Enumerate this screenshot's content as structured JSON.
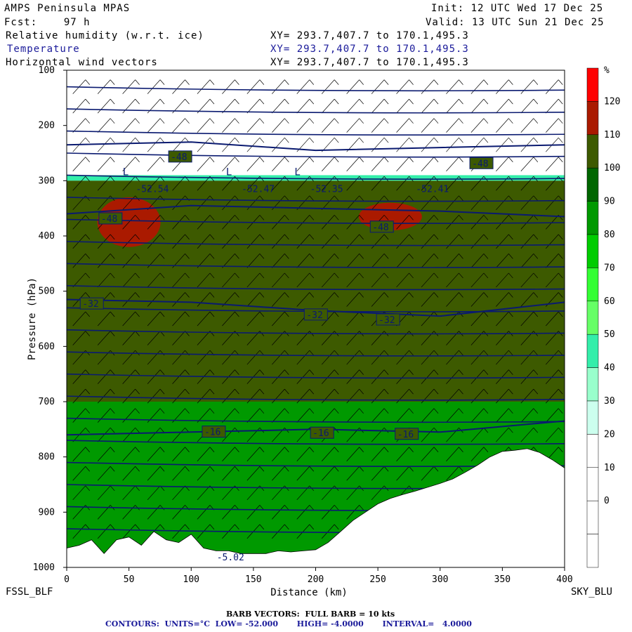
{
  "header": {
    "model": "AMPS Peninsula MPAS",
    "fcst_label": "Fcst:",
    "fcst_value": "97 h",
    "init": "Init: 12 UTC Wed 17 Dec 25",
    "valid": "Valid: 13 UTC Sun 21 Dec 25",
    "fields": [
      {
        "name": "Relative humidity (w.r.t. ice)",
        "xy": "XY= 293.7,407.7 to 170.1,495.3"
      },
      {
        "name": "Temperature",
        "xy": "XY= 293.7,407.7 to 170.1,495.3"
      },
      {
        "name": "Horizontal wind vectors",
        "xy": "XY= 293.7,407.7 to 170.1,495.3"
      }
    ]
  },
  "footer": {
    "left_station": "FSSL_BLF",
    "right_station": "SKY_BLU",
    "barb": "BARB VECTORS:  FULL BARB = 10 kts",
    "contours": "CONTOURS:  UNITS=°C  LOW= -52.000       HIGH= -4.0000       INTERVAL=   4.0000"
  },
  "colors": {
    "temp_contour": "#0a1a70",
    "rh_scale": [
      "#ffffff",
      "#ffffff",
      "#ffffff",
      "#ffffff",
      "#ccffee",
      "#99ffcc",
      "#33eeaa",
      "#66ff66",
      "#33ff33",
      "#00cc00",
      "#009900",
      "#006600",
      "#3d5a00",
      "#aa1a00",
      "#ff0000"
    ]
  },
  "chart_data": {
    "type": "heatmap",
    "xlabel": "Distance (km)",
    "ylabel": "Pressure (hPa)",
    "xlim": [
      0,
      400
    ],
    "ylim": [
      1000,
      100
    ],
    "x_ticks": [
      0,
      50,
      100,
      150,
      200,
      250,
      300,
      350,
      400
    ],
    "y_ticks": [
      100,
      200,
      300,
      400,
      500,
      600,
      700,
      800,
      900,
      1000
    ],
    "colorbar": {
      "unit": "%",
      "labels": [
        120,
        110,
        100,
        90,
        80,
        70,
        60,
        50,
        40,
        30,
        20,
        10,
        0
      ]
    },
    "terrain_surface_hPa": {
      "x": [
        0,
        10,
        20,
        30,
        40,
        50,
        60,
        70,
        80,
        90,
        100,
        110,
        120,
        130,
        140,
        150,
        160,
        170,
        180,
        190,
        200,
        210,
        220,
        230,
        240,
        250,
        260,
        270,
        280,
        290,
        300,
        310,
        320,
        330,
        340,
        350,
        360,
        370,
        380,
        390,
        400
      ],
      "p": [
        965,
        960,
        950,
        975,
        950,
        945,
        960,
        935,
        950,
        955,
        940,
        965,
        970,
        970,
        975,
        975,
        975,
        970,
        972,
        970,
        968,
        955,
        935,
        915,
        900,
        885,
        875,
        868,
        862,
        855,
        848,
        840,
        828,
        815,
        800,
        790,
        788,
        785,
        792,
        805,
        820
      ]
    },
    "temperature_contours_C": [
      {
        "label": "-48",
        "points": [
          [
            0,
            360
          ],
          [
            100,
            345
          ],
          [
            200,
            350
          ],
          [
            300,
            355
          ],
          [
            400,
            365
          ]
        ]
      },
      {
        "label": "-32",
        "points": [
          [
            0,
            515
          ],
          [
            100,
            520
          ],
          [
            200,
            535
          ],
          [
            300,
            545
          ],
          [
            400,
            520
          ]
        ]
      },
      {
        "label": "-16",
        "points": [
          [
            0,
            760
          ],
          [
            100,
            755
          ],
          [
            200,
            750
          ],
          [
            300,
            755
          ],
          [
            400,
            735
          ]
        ]
      },
      {
        "label": "-48",
        "points": [
          [
            0,
            235
          ],
          [
            100,
            230
          ],
          [
            200,
            245
          ],
          [
            300,
            240
          ],
          [
            400,
            235
          ]
        ]
      }
    ],
    "contour_labels": [
      {
        "text": "-48",
        "x": 83,
        "p": 260
      },
      {
        "text": "-48",
        "x": 325,
        "p": 272
      },
      {
        "text": "-48",
        "x": 27,
        "p": 372
      },
      {
        "text": "-48",
        "x": 245,
        "p": 387
      },
      {
        "text": "-32",
        "x": 12,
        "p": 526
      },
      {
        "text": "-32",
        "x": 192,
        "p": 546
      },
      {
        "text": "-32",
        "x": 250,
        "p": 555
      },
      {
        "text": "-16",
        "x": 110,
        "p": 758
      },
      {
        "text": "-16",
        "x": 197,
        "p": 760
      },
      {
        "text": "-16",
        "x": 265,
        "p": 762
      },
      {
        "text": "-52.54",
        "x": 55,
        "p": 318
      },
      {
        "text": "-52.47",
        "x": 140,
        "p": 318
      },
      {
        "text": "-52.35",
        "x": 195,
        "p": 318
      },
      {
        "text": "-52.41",
        "x": 280,
        "p": 318
      },
      {
        "text": "-5.02",
        "x": 120,
        "p": 985
      }
    ],
    "low_markers": [
      {
        "text": "L",
        "x": 45,
        "p": 290
      },
      {
        "text": "L",
        "x": 128,
        "p": 290
      },
      {
        "text": "L",
        "x": 183,
        "p": 290
      }
    ],
    "rh_regions": [
      {
        "name": "dry-upper",
        "rh": 10,
        "p_top": 100,
        "p_bottom": 290
      },
      {
        "name": "moist-band",
        "rh": 40,
        "p_top": 290,
        "p_bottom": 300
      },
      {
        "name": "saturated",
        "rh": 105,
        "p_top": 300,
        "p_bottom": 800
      },
      {
        "name": "supersat-1",
        "rh": 115,
        "x": 50,
        "p_top": 330,
        "p_bottom": 420
      },
      {
        "name": "supersat-2",
        "rh": 115,
        "x": 260,
        "p_top": 340,
        "p_bottom": 390
      },
      {
        "name": "low-level-moist",
        "rh": 85,
        "p_top": 700,
        "p_bottom": 980
      }
    ]
  }
}
